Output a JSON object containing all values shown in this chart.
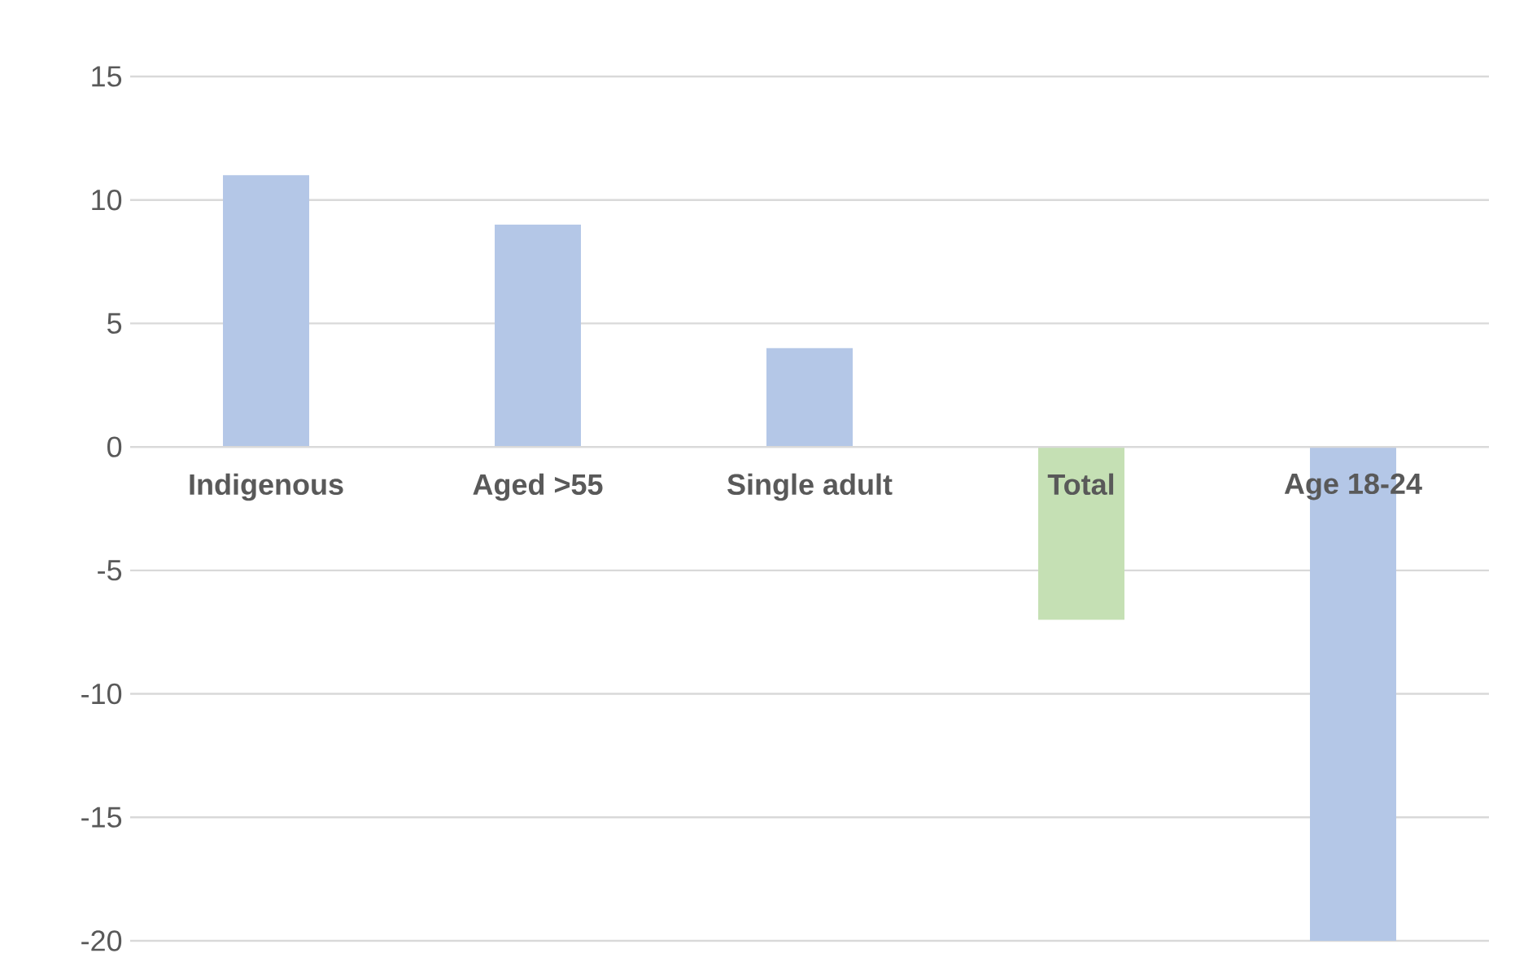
{
  "chart_data": {
    "type": "bar",
    "categories": [
      "Indigenous",
      "Aged >55",
      "Single adult",
      "Total",
      "Age 18-24"
    ],
    "values": [
      11,
      9,
      4,
      -7,
      -20
    ],
    "colors": [
      "#b4c7e7",
      "#b4c7e7",
      "#b4c7e7",
      "#c5e0b4",
      "#b4c7e7"
    ],
    "ylim": [
      -20,
      15
    ],
    "yticks": [
      -20,
      -15,
      -10,
      -5,
      0,
      5,
      10,
      15
    ],
    "grid": "y"
  }
}
